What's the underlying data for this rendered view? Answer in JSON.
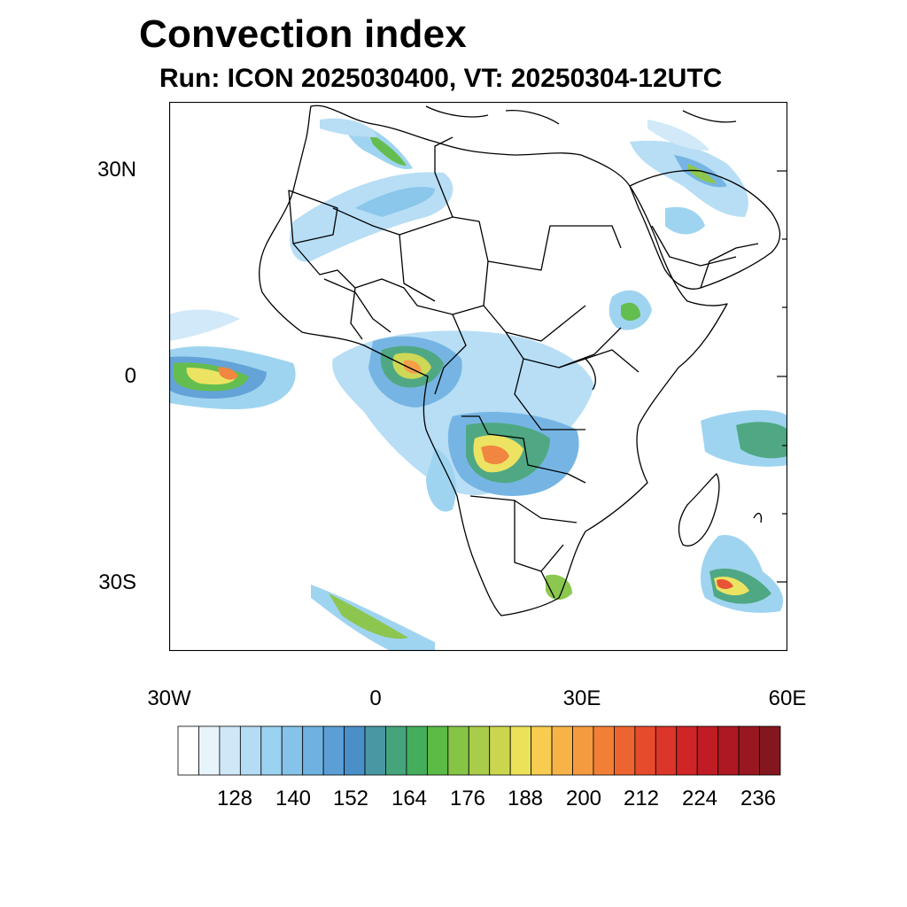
{
  "title": "Convection index",
  "subtitle": "Run: ICON 2025030400,  VT: 20250304-12UTC",
  "axes": {
    "lat_labels": [
      "30N",
      "0",
      "30S"
    ],
    "lon_labels": [
      "30W",
      "0",
      "30E",
      "60E"
    ],
    "lon_range": [
      -30,
      60
    ],
    "lat_range": [
      -40,
      40
    ]
  },
  "colorbar": {
    "labels": [
      "128",
      "140",
      "152",
      "164",
      "176",
      "188",
      "200",
      "212",
      "224",
      "236"
    ],
    "colors": [
      "#ffffff",
      "#e8f4fc",
      "#cfe8f8",
      "#b4ddf5",
      "#9ad2f0",
      "#85c3ea",
      "#6fb2e2",
      "#5b9fd6",
      "#4a8fc8",
      "#4a97a4",
      "#46a47d",
      "#44ae5c",
      "#5cba46",
      "#86c446",
      "#a9cc4a",
      "#cbd64e",
      "#ece25a",
      "#f7cc50",
      "#f7b347",
      "#f59b3f",
      "#f18036",
      "#ec6530",
      "#e64b2c",
      "#dc3529",
      "#cf2527",
      "#c01c25",
      "#ad1822",
      "#981720",
      "#83161e"
    ]
  }
}
